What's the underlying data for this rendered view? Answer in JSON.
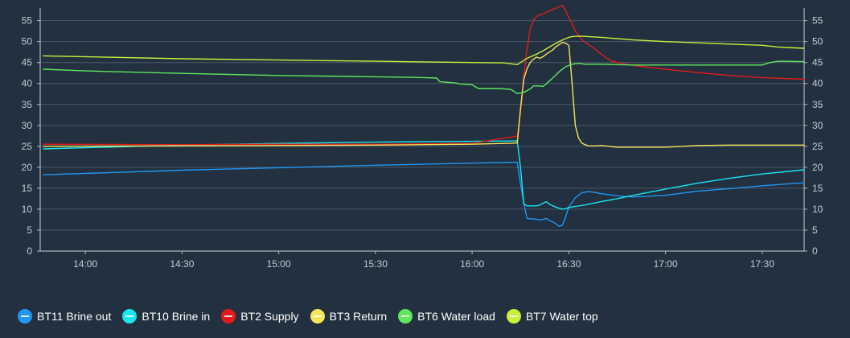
{
  "chart_data": {
    "type": "line",
    "title": "",
    "xlabel": "",
    "ylabel": "",
    "x_ticks": [
      "14:00",
      "14:30",
      "15:00",
      "15:30",
      "16:00",
      "16:30",
      "17:00",
      "17:30"
    ],
    "x_range": [
      "13:46",
      "17:43"
    ],
    "ylim": [
      0,
      58
    ],
    "y_ticks": [
      0,
      5,
      10,
      15,
      20,
      25,
      30,
      35,
      40,
      45,
      50,
      55
    ],
    "grid": "horizontal",
    "legend_position": "bottom-left",
    "series": [
      {
        "name": "BT11 Brine out",
        "color": "#2196f3",
        "x": [
          "13:47",
          "14:30",
          "15:00",
          "15:30",
          "16:00",
          "16:14",
          "16:15",
          "16:16",
          "16:17",
          "16:20",
          "16:21",
          "16:22",
          "16:23",
          "16:24",
          "16:25",
          "16:26",
          "16:27",
          "16:28",
          "16:29",
          "16:30",
          "16:32",
          "16:34",
          "16:36",
          "16:38",
          "16:40",
          "16:45",
          "16:50",
          "17:00",
          "17:10",
          "17:20",
          "17:30",
          "17:43"
        ],
        "y": [
          18.2,
          19.3,
          19.9,
          20.5,
          21.0,
          21.2,
          16.0,
          11.5,
          7.8,
          7.6,
          7.4,
          7.6,
          7.8,
          7.3,
          7.0,
          6.5,
          5.9,
          6.2,
          8.2,
          10.5,
          12.7,
          13.9,
          14.2,
          14.0,
          13.7,
          13.2,
          12.9,
          13.3,
          14.3,
          14.9,
          15.6,
          16.3
        ]
      },
      {
        "name": "BT10 Brine in",
        "color": "#18e7f0",
        "x": [
          "13:47",
          "14:30",
          "15:00",
          "15:30",
          "16:00",
          "16:14",
          "16:15",
          "16:16",
          "16:17",
          "16:20",
          "16:21",
          "16:22",
          "16:23",
          "16:24",
          "16:25",
          "16:26",
          "16:27",
          "16:28",
          "16:29",
          "16:30",
          "16:35",
          "16:40",
          "16:45",
          "16:50",
          "17:00",
          "17:10",
          "17:20",
          "17:30",
          "17:43"
        ],
        "y": [
          24.4,
          25.3,
          25.7,
          26.0,
          26.2,
          26.3,
          20.0,
          11.3,
          10.8,
          10.8,
          11.0,
          11.4,
          11.8,
          11.2,
          10.8,
          10.5,
          10.2,
          10.0,
          10.1,
          10.4,
          11.0,
          11.8,
          12.5,
          13.3,
          14.8,
          16.2,
          17.4,
          18.4,
          19.4
        ]
      },
      {
        "name": "BT2 Supply",
        "color": "#e11b1b",
        "x": [
          "13:47",
          "14:30",
          "15:00",
          "15:30",
          "16:00",
          "16:10",
          "16:13",
          "16:14",
          "16:15",
          "16:16",
          "16:17",
          "16:18",
          "16:19",
          "16:20",
          "16:21",
          "16:22",
          "16:23",
          "16:24",
          "16:25",
          "16:26",
          "16:27",
          "16:28",
          "16:29",
          "16:30",
          "16:31",
          "16:32",
          "16:34",
          "16:36",
          "16:38",
          "16:40",
          "16:43",
          "16:46",
          "16:50",
          "17:00",
          "17:10",
          "17:20",
          "17:30",
          "17:43"
        ],
        "y": [
          25.5,
          25.4,
          25.5,
          25.5,
          25.7,
          27.0,
          27.3,
          27.5,
          33.0,
          42.0,
          48.0,
          53.0,
          55.0,
          56.0,
          56.4,
          56.6,
          57.0,
          57.3,
          57.7,
          58.0,
          58.3,
          58.6,
          57.4,
          55.7,
          54.3,
          52.5,
          50.5,
          49.3,
          48.3,
          47.0,
          45.4,
          44.8,
          44.3,
          43.4,
          42.6,
          41.9,
          41.4,
          41.0
        ]
      },
      {
        "name": "BT3 Return",
        "color": "#f5e65a",
        "x": [
          "13:47",
          "14:30",
          "15:00",
          "15:30",
          "16:00",
          "16:14",
          "16:15",
          "16:16",
          "16:17",
          "16:18",
          "16:19",
          "16:20",
          "16:21",
          "16:22",
          "16:23",
          "16:24",
          "16:25",
          "16:26",
          "16:27",
          "16:28",
          "16:29",
          "16:30",
          "16:31",
          "16:32",
          "16:33",
          "16:34",
          "16:35",
          "16:36",
          "16:38",
          "16:40",
          "16:45",
          "16:50",
          "17:00",
          "17:10",
          "17:20",
          "17:30",
          "17:43"
        ],
        "y": [
          25.0,
          25.1,
          25.2,
          25.3,
          25.5,
          25.8,
          34.0,
          41.0,
          43.5,
          45.0,
          45.8,
          46.3,
          46.0,
          46.4,
          47.0,
          47.5,
          48.0,
          48.8,
          49.3,
          49.8,
          49.6,
          49.1,
          40.0,
          30.0,
          27.0,
          25.8,
          25.4,
          25.1,
          25.1,
          25.2,
          24.8,
          24.8,
          24.8,
          25.2,
          25.3,
          25.3,
          25.3
        ]
      },
      {
        "name": "BT6 Water load",
        "color": "#5ee85e",
        "x": [
          "13:47",
          "14:00",
          "14:30",
          "15:00",
          "15:30",
          "15:45",
          "15:49",
          "15:50",
          "15:55",
          "15:56",
          "16:00",
          "16:01",
          "16:02",
          "16:08",
          "16:10",
          "16:12",
          "16:14",
          "16:16",
          "16:18",
          "16:19",
          "16:21",
          "16:22",
          "16:23",
          "16:25",
          "16:27",
          "16:29",
          "16:31",
          "16:33",
          "16:35",
          "16:40",
          "16:50",
          "17:00",
          "17:20",
          "17:30",
          "17:32",
          "17:34",
          "17:36",
          "17:43"
        ],
        "y": [
          43.4,
          43.0,
          42.4,
          41.9,
          41.6,
          41.4,
          41.3,
          40.4,
          40.1,
          39.9,
          39.7,
          39.2,
          38.8,
          38.8,
          38.7,
          38.6,
          37.6,
          37.9,
          38.7,
          39.4,
          39.4,
          39.3,
          39.9,
          41.3,
          42.8,
          44.0,
          44.6,
          44.8,
          44.6,
          44.6,
          44.4,
          44.4,
          44.4,
          44.4,
          44.9,
          45.2,
          45.3,
          45.2
        ]
      },
      {
        "name": "BT7 Water top",
        "color": "#c8f03a",
        "x": [
          "13:47",
          "14:30",
          "15:00",
          "15:30",
          "16:00",
          "16:10",
          "16:14",
          "16:15",
          "16:16",
          "16:17",
          "16:20",
          "16:22",
          "16:24",
          "16:26",
          "16:28",
          "16:30",
          "16:31",
          "16:33",
          "16:36",
          "16:40",
          "16:45",
          "16:50",
          "17:00",
          "17:10",
          "17:20",
          "17:30",
          "17:35",
          "17:40",
          "17:43"
        ],
        "y": [
          46.6,
          45.9,
          45.6,
          45.3,
          45.0,
          44.9,
          44.5,
          45.0,
          45.5,
          46.0,
          47.0,
          47.8,
          48.7,
          49.6,
          50.4,
          51.0,
          51.2,
          51.3,
          51.2,
          51.0,
          50.7,
          50.4,
          50.0,
          49.7,
          49.4,
          49.1,
          48.7,
          48.5,
          48.4
        ]
      }
    ]
  }
}
